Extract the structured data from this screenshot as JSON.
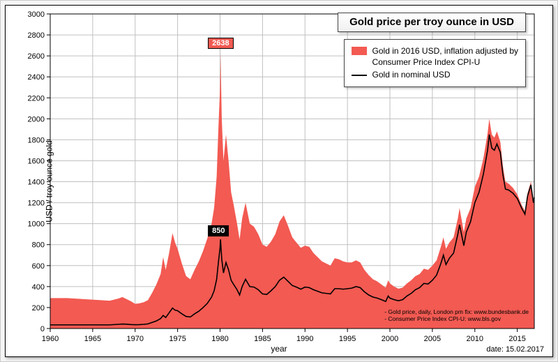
{
  "chart": {
    "type": "area+line",
    "title": "Gold price per troy ounce in USD",
    "xlabel": "year",
    "ylabel": "USD / troy ounce gold",
    "date_caption": "date: 15.02.2017",
    "background_color": "#ffffff",
    "outer_background": "#f5f5f5",
    "grid_color": "#c0c0c0",
    "axis_color": "#000000",
    "title_fontsize": 15,
    "label_fontsize": 12,
    "tick_fontsize": 11,
    "xlim": [
      1960,
      2017
    ],
    "ylim": [
      0,
      3000
    ],
    "xtick_step": 5,
    "ytick_step": 200,
    "legend": {
      "position": "top-right-inner",
      "items": [
        {
          "label_line1": "Gold in 2016 USD, inflation adjusted by",
          "label_line2": "Consumer Price Index CPI-U",
          "swatch": "area",
          "color": "#f25a52"
        },
        {
          "label_line1": "Gold in nominal USD",
          "label_line2": "",
          "swatch": "line",
          "color": "#000000"
        }
      ]
    },
    "peak_labels": [
      {
        "value": "2638",
        "year": 1980.05,
        "y": 2638,
        "bg": "#f25a52",
        "text_color": "#ffffff"
      },
      {
        "value": "850",
        "year": 1980.05,
        "y": 850,
        "bg": "#000000",
        "text_color": "#ffffff"
      }
    ],
    "sources": [
      "- Gold price, daily, London pm fix: www.bundesbank.de",
      "- Consumer Price Index CPI-U: www.bls.gov"
    ],
    "series_area": {
      "name": "Gold in 2016 USD (CPI-U adjusted)",
      "color": "#f25a52",
      "fill_opacity": 1.0,
      "points": [
        [
          1960.0,
          290
        ],
        [
          1961.0,
          290
        ],
        [
          1962.0,
          290
        ],
        [
          1963.0,
          285
        ],
        [
          1964.0,
          280
        ],
        [
          1965.0,
          275
        ],
        [
          1966.0,
          270
        ],
        [
          1967.0,
          265
        ],
        [
          1968.0,
          285
        ],
        [
          1968.5,
          300
        ],
        [
          1969.0,
          280
        ],
        [
          1969.5,
          260
        ],
        [
          1970.0,
          235
        ],
        [
          1970.5,
          240
        ],
        [
          1971.0,
          250
        ],
        [
          1971.5,
          270
        ],
        [
          1972.0,
          340
        ],
        [
          1972.5,
          420
        ],
        [
          1973.0,
          520
        ],
        [
          1973.3,
          680
        ],
        [
          1973.6,
          560
        ],
        [
          1974.0,
          720
        ],
        [
          1974.4,
          910
        ],
        [
          1974.7,
          820
        ],
        [
          1975.0,
          760
        ],
        [
          1975.5,
          620
        ],
        [
          1976.0,
          500
        ],
        [
          1976.5,
          470
        ],
        [
          1977.0,
          560
        ],
        [
          1977.5,
          640
        ],
        [
          1978.0,
          740
        ],
        [
          1978.5,
          860
        ],
        [
          1979.0,
          1000
        ],
        [
          1979.3,
          1150
        ],
        [
          1979.6,
          1450
        ],
        [
          1979.8,
          1900
        ],
        [
          1980.0,
          2300
        ],
        [
          1980.05,
          2638
        ],
        [
          1980.2,
          2000
        ],
        [
          1980.4,
          1600
        ],
        [
          1980.7,
          1850
        ],
        [
          1981.0,
          1600
        ],
        [
          1981.3,
          1300
        ],
        [
          1981.6,
          1180
        ],
        [
          1982.0,
          1000
        ],
        [
          1982.3,
          850
        ],
        [
          1982.6,
          1050
        ],
        [
          1983.0,
          1200
        ],
        [
          1983.5,
          1000
        ],
        [
          1984.0,
          970
        ],
        [
          1984.5,
          900
        ],
        [
          1985.0,
          800
        ],
        [
          1985.5,
          780
        ],
        [
          1986.0,
          830
        ],
        [
          1986.5,
          900
        ],
        [
          1987.0,
          1020
        ],
        [
          1987.5,
          1080
        ],
        [
          1988.0,
          980
        ],
        [
          1988.5,
          870
        ],
        [
          1989.0,
          820
        ],
        [
          1989.5,
          770
        ],
        [
          1990.0,
          790
        ],
        [
          1990.5,
          780
        ],
        [
          1991.0,
          720
        ],
        [
          1991.5,
          680
        ],
        [
          1992.0,
          640
        ],
        [
          1992.5,
          620
        ],
        [
          1993.0,
          600
        ],
        [
          1993.5,
          670
        ],
        [
          1994.0,
          660
        ],
        [
          1994.5,
          640
        ],
        [
          1995.0,
          630
        ],
        [
          1995.5,
          630
        ],
        [
          1996.0,
          650
        ],
        [
          1996.5,
          630
        ],
        [
          1997.0,
          560
        ],
        [
          1997.5,
          510
        ],
        [
          1998.0,
          470
        ],
        [
          1998.5,
          450
        ],
        [
          1999.0,
          420
        ],
        [
          1999.5,
          390
        ],
        [
          1999.8,
          460
        ],
        [
          2000.0,
          430
        ],
        [
          2000.5,
          400
        ],
        [
          2001.0,
          380
        ],
        [
          2001.5,
          390
        ],
        [
          2002.0,
          430
        ],
        [
          2002.5,
          460
        ],
        [
          2003.0,
          500
        ],
        [
          2003.5,
          520
        ],
        [
          2004.0,
          570
        ],
        [
          2004.5,
          560
        ],
        [
          2005.0,
          600
        ],
        [
          2005.5,
          650
        ],
        [
          2006.0,
          780
        ],
        [
          2006.3,
          870
        ],
        [
          2006.6,
          760
        ],
        [
          2007.0,
          820
        ],
        [
          2007.5,
          870
        ],
        [
          2008.0,
          1050
        ],
        [
          2008.2,
          1150
        ],
        [
          2008.7,
          920
        ],
        [
          2009.0,
          1050
        ],
        [
          2009.5,
          1150
        ],
        [
          2010.0,
          1350
        ],
        [
          2010.5,
          1450
        ],
        [
          2011.0,
          1620
        ],
        [
          2011.5,
          1860
        ],
        [
          2011.7,
          2000
        ],
        [
          2012.0,
          1850
        ],
        [
          2012.3,
          1820
        ],
        [
          2012.6,
          1880
        ],
        [
          2013.0,
          1780
        ],
        [
          2013.3,
          1550
        ],
        [
          2013.6,
          1400
        ],
        [
          2014.0,
          1380
        ],
        [
          2014.5,
          1340
        ],
        [
          2015.0,
          1280
        ],
        [
          2015.5,
          1180
        ],
        [
          2015.9,
          1120
        ],
        [
          2016.2,
          1290
        ],
        [
          2016.6,
          1400
        ],
        [
          2016.9,
          1230
        ],
        [
          2017.0,
          1280
        ]
      ]
    },
    "series_line": {
      "name": "Gold in nominal USD",
      "color": "#000000",
      "line_width": 1.6,
      "points": [
        [
          1960.0,
          35
        ],
        [
          1961.0,
          35
        ],
        [
          1962.0,
          35
        ],
        [
          1963.0,
          35
        ],
        [
          1964.0,
          35
        ],
        [
          1965.0,
          35
        ],
        [
          1966.0,
          35
        ],
        [
          1967.0,
          35
        ],
        [
          1968.0,
          40
        ],
        [
          1968.5,
          43
        ],
        [
          1969.0,
          41
        ],
        [
          1969.5,
          38
        ],
        [
          1970.0,
          36
        ],
        [
          1970.5,
          37
        ],
        [
          1971.0,
          40
        ],
        [
          1971.5,
          44
        ],
        [
          1972.0,
          58
        ],
        [
          1972.5,
          72
        ],
        [
          1973.0,
          95
        ],
        [
          1973.3,
          125
        ],
        [
          1973.6,
          105
        ],
        [
          1974.0,
          150
        ],
        [
          1974.4,
          195
        ],
        [
          1974.7,
          175
        ],
        [
          1975.0,
          170
        ],
        [
          1975.5,
          140
        ],
        [
          1976.0,
          115
        ],
        [
          1976.5,
          110
        ],
        [
          1977.0,
          140
        ],
        [
          1977.5,
          165
        ],
        [
          1978.0,
          200
        ],
        [
          1978.5,
          240
        ],
        [
          1979.0,
          300
        ],
        [
          1979.3,
          360
        ],
        [
          1979.6,
          470
        ],
        [
          1979.8,
          630
        ],
        [
          1980.0,
          770
        ],
        [
          1980.05,
          850
        ],
        [
          1980.2,
          660
        ],
        [
          1980.4,
          530
        ],
        [
          1980.7,
          630
        ],
        [
          1981.0,
          560
        ],
        [
          1981.3,
          460
        ],
        [
          1981.6,
          420
        ],
        [
          1982.0,
          370
        ],
        [
          1982.3,
          320
        ],
        [
          1982.6,
          400
        ],
        [
          1983.0,
          470
        ],
        [
          1983.5,
          400
        ],
        [
          1984.0,
          395
        ],
        [
          1984.5,
          370
        ],
        [
          1985.0,
          330
        ],
        [
          1985.5,
          325
        ],
        [
          1986.0,
          360
        ],
        [
          1986.5,
          400
        ],
        [
          1987.0,
          460
        ],
        [
          1987.5,
          490
        ],
        [
          1988.0,
          450
        ],
        [
          1988.5,
          410
        ],
        [
          1989.0,
          395
        ],
        [
          1989.5,
          375
        ],
        [
          1990.0,
          395
        ],
        [
          1990.5,
          390
        ],
        [
          1991.0,
          370
        ],
        [
          1991.5,
          355
        ],
        [
          1992.0,
          340
        ],
        [
          1992.5,
          335
        ],
        [
          1993.0,
          330
        ],
        [
          1993.5,
          380
        ],
        [
          1994.0,
          380
        ],
        [
          1994.5,
          375
        ],
        [
          1995.0,
          380
        ],
        [
          1995.5,
          385
        ],
        [
          1996.0,
          400
        ],
        [
          1996.5,
          390
        ],
        [
          1997.0,
          350
        ],
        [
          1997.5,
          320
        ],
        [
          1998.0,
          300
        ],
        [
          1998.5,
          290
        ],
        [
          1999.0,
          275
        ],
        [
          1999.5,
          258
        ],
        [
          1999.8,
          310
        ],
        [
          2000.0,
          290
        ],
        [
          2000.5,
          275
        ],
        [
          2001.0,
          265
        ],
        [
          2001.5,
          275
        ],
        [
          2002.0,
          310
        ],
        [
          2002.5,
          335
        ],
        [
          2003.0,
          370
        ],
        [
          2003.5,
          390
        ],
        [
          2004.0,
          430
        ],
        [
          2004.5,
          425
        ],
        [
          2005.0,
          460
        ],
        [
          2005.5,
          510
        ],
        [
          2006.0,
          620
        ],
        [
          2006.3,
          700
        ],
        [
          2006.6,
          610
        ],
        [
          2007.0,
          670
        ],
        [
          2007.5,
          720
        ],
        [
          2008.0,
          900
        ],
        [
          2008.2,
          990
        ],
        [
          2008.7,
          790
        ],
        [
          2009.0,
          920
        ],
        [
          2009.5,
          1020
        ],
        [
          2010.0,
          1200
        ],
        [
          2010.5,
          1300
        ],
        [
          2011.0,
          1470
        ],
        [
          2011.5,
          1700
        ],
        [
          2011.7,
          1850
        ],
        [
          2012.0,
          1720
        ],
        [
          2012.3,
          1700
        ],
        [
          2012.6,
          1760
        ],
        [
          2013.0,
          1680
        ],
        [
          2013.3,
          1470
        ],
        [
          2013.6,
          1330
        ],
        [
          2014.0,
          1320
        ],
        [
          2014.5,
          1290
        ],
        [
          2015.0,
          1240
        ],
        [
          2015.5,
          1150
        ],
        [
          2015.9,
          1090
        ],
        [
          2016.2,
          1260
        ],
        [
          2016.6,
          1370
        ],
        [
          2016.9,
          1200
        ],
        [
          2017.0,
          1250
        ]
      ]
    }
  }
}
